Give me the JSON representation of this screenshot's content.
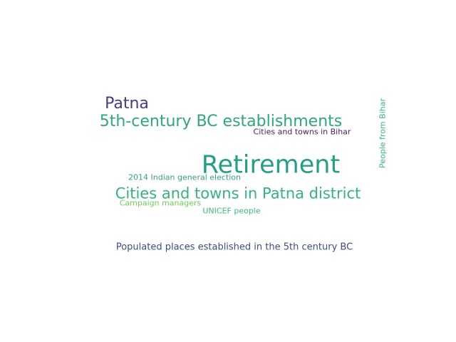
{
  "words": [
    {
      "text": "Patna",
      "color": "#463c86",
      "vertical": false
    },
    {
      "text": "5th-century BC establishments",
      "color": "#2ea67f",
      "vertical": false
    },
    {
      "text": "Cities and towns in Bihar",
      "color": "#4b1a5e",
      "vertical": false
    },
    {
      "text": "Retirement",
      "color": "#22a085",
      "vertical": false
    },
    {
      "text": "People from Bihar",
      "color": "#34b679",
      "vertical": true
    },
    {
      "text": "2014 Indian general election",
      "color": "#36a080",
      "vertical": false
    },
    {
      "text": "Cities and towns in Patna district",
      "color": "#33b57a",
      "vertical": false
    },
    {
      "text": "Campaign managers",
      "color": "#6fcf5a",
      "vertical": false
    },
    {
      "text": "UNICEF people",
      "color": "#3dbb74",
      "vertical": false
    },
    {
      "text": "Populated places established in the 5th century BC",
      "color": "#3a4f8a",
      "vertical": false
    }
  ]
}
